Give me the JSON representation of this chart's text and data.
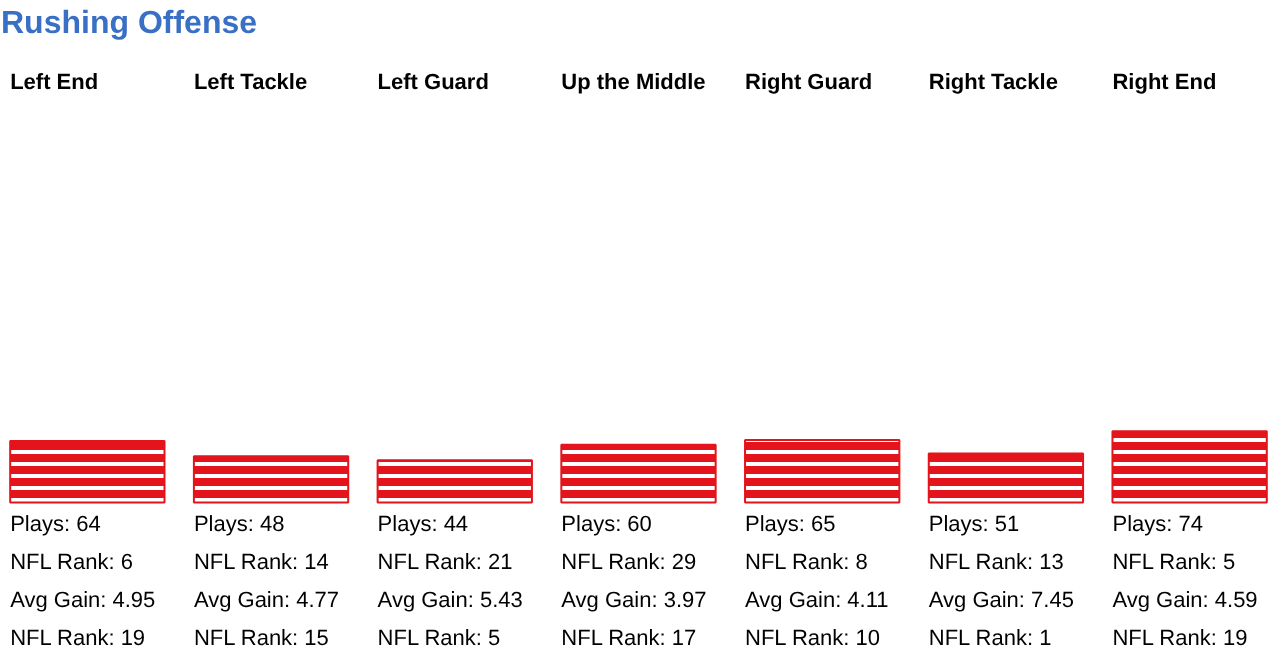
{
  "chart_data": {
    "type": "bar",
    "title": "Rushing Offense",
    "categories": [
      "Left End",
      "Left Tackle",
      "Left Guard",
      "Up the Middle",
      "Right Guard",
      "Right Tackle",
      "Right End"
    ],
    "values": [
      64,
      48,
      44,
      60,
      65,
      51,
      74
    ],
    "value_labels": [
      "Plays: 64",
      "Plays: 48",
      "Plays: 44",
      "Plays: 60",
      "Plays: 65",
      "Plays: 51",
      "Plays: 74"
    ],
    "color": "#e3141b",
    "annotations": [
      "NFL Rank: 6",
      "Avg Gain: 4.95",
      "NFL Rank: 19",
      "NFL Rank: 14",
      "Avg Gain: 4.77",
      "NFL Rank: 15",
      "NFL Rank: 21",
      "Avg Gain: 5.43",
      "NFL Rank: 5",
      "NFL Rank: 29",
      "Avg Gain: 3.97",
      "NFL Rank: 17",
      "NFL Rank: 8",
      "Avg Gain: 4.11",
      "NFL Rank: 10",
      "NFL Rank: 13",
      "Avg Gain: 7.45",
      "NFL Rank: 1",
      "NFL Rank: 5",
      "Avg Gain: 4.59",
      "NFL Rank: 19"
    ]
  }
}
